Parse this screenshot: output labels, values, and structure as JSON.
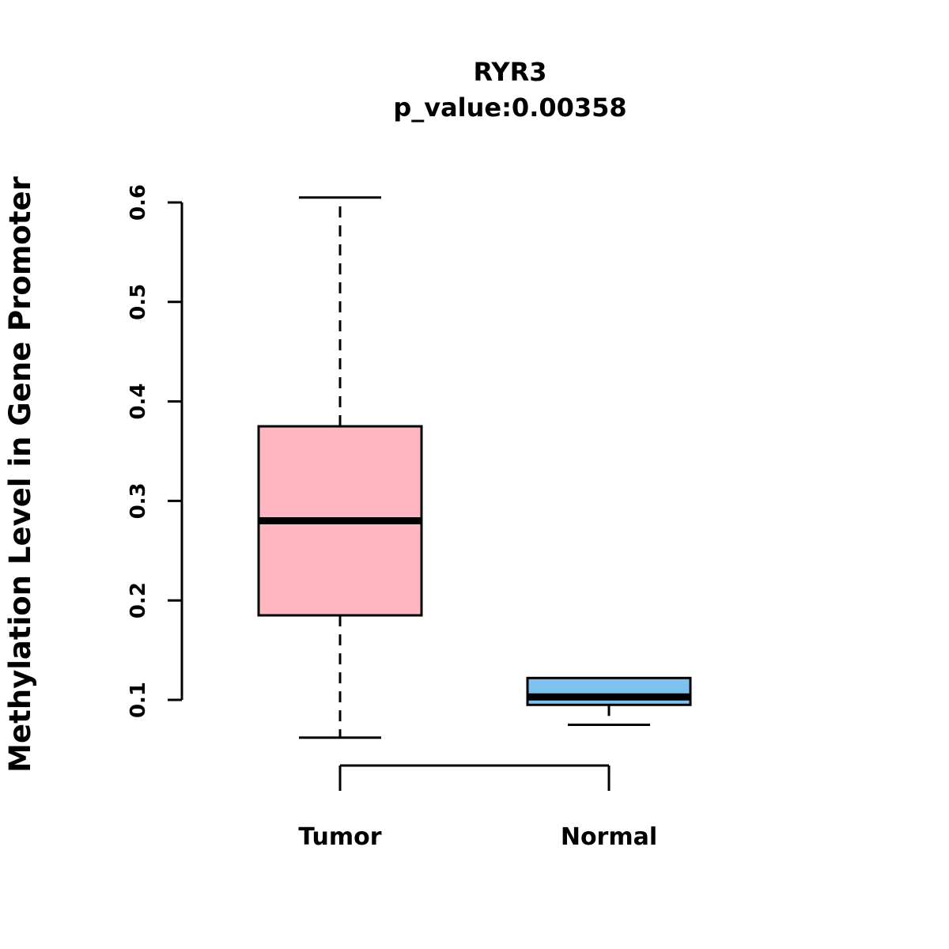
{
  "title": "RYR3",
  "subtitle": "p_value:0.00358",
  "p_value": 0.00358,
  "background_color": "#ffffff",
  "chart_data": {
    "type": "boxplot",
    "title": "RYR3",
    "subtitle": "p_value:0.00358",
    "xlabel": "",
    "ylabel": "Methylation Level in Gene Promoter",
    "ylim": [
      0.05,
      0.62
    ],
    "yticks": [
      0.1,
      0.2,
      0.3,
      0.4,
      0.5,
      0.6
    ],
    "grid": false,
    "legend": "none",
    "categories": [
      "Tumor",
      "Normal"
    ],
    "series": [
      {
        "name": "Tumor",
        "color": "#FFB6C1",
        "whisker_low": 0.062,
        "q1": 0.185,
        "median": 0.28,
        "q3": 0.375,
        "whisker_high": 0.605
      },
      {
        "name": "Normal",
        "color": "#7EC0EE",
        "whisker_low": 0.075,
        "q1": 0.095,
        "median": 0.103,
        "q3": 0.122,
        "whisker_high": 0.122
      }
    ]
  }
}
